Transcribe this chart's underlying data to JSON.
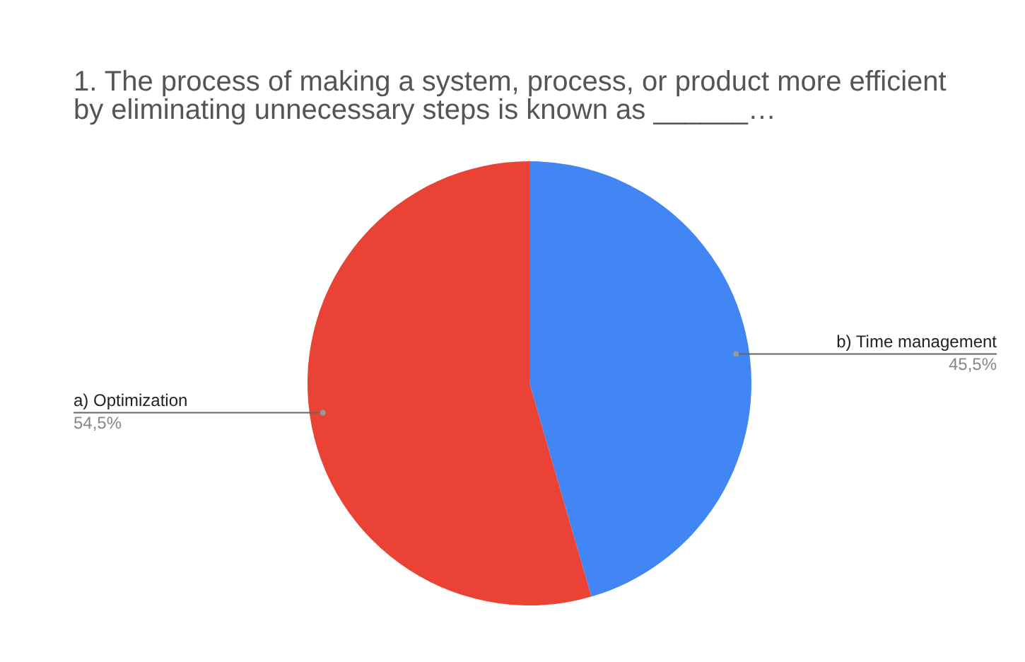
{
  "chart_data": {
    "type": "pie",
    "title": "1. The process of making a system, process, or product more efficient by eliminating unnecessary steps is known as ______…",
    "categories": [
      "b) Time management",
      "a) Optimization"
    ],
    "values": [
      45.5,
      54.5
    ],
    "colors": [
      "#4285f4",
      "#ea4335"
    ],
    "value_labels": [
      "45,5%",
      "54,5%"
    ],
    "legend": false
  }
}
